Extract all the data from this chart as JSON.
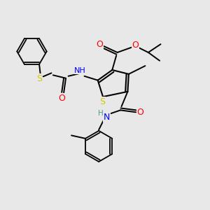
{
  "background_color": "#e8e8e8",
  "bond_color": "#000000",
  "atom_colors": {
    "S": "#cccc00",
    "N": "#0000ff",
    "O": "#ff0000",
    "C": "#000000",
    "H": "#4a9a9a"
  }
}
